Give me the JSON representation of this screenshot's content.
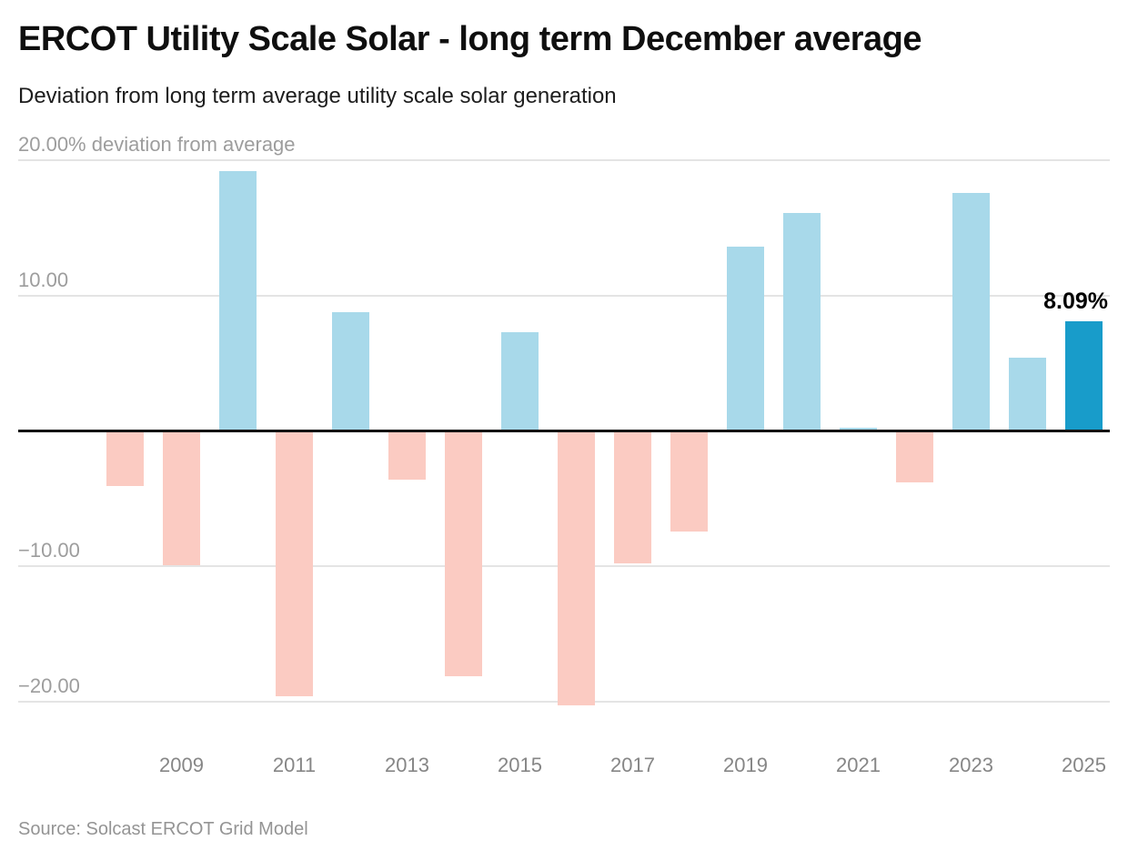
{
  "header": {
    "title": "ERCOT Utility Scale Solar - long term December average",
    "subtitle": "Deviation from long term average utility scale solar generation"
  },
  "chart_data": {
    "type": "bar",
    "title": "ERCOT Utility Scale Solar - long term December average",
    "subtitle": "Deviation from long term average utility scale solar generation",
    "ylabel": "% deviation from average",
    "categories": [
      2008,
      2009,
      2010,
      2011,
      2012,
      2013,
      2014,
      2015,
      2016,
      2017,
      2018,
      2019,
      2020,
      2021,
      2022,
      2023,
      2024,
      2025
    ],
    "values": [
      -4.1,
      -9.9,
      19.2,
      -19.6,
      8.8,
      -3.6,
      -18.1,
      7.3,
      -20.3,
      -9.8,
      -7.4,
      13.6,
      16.1,
      0.25,
      -3.8,
      17.6,
      5.4,
      8.09
    ],
    "highlight_year": 2025,
    "annotation": {
      "year": 2025,
      "text": "8.09%"
    },
    "y_ticks": [
      {
        "value": 20,
        "label": "20.00% deviation from average"
      },
      {
        "value": 10,
        "label": "10.00"
      },
      {
        "value": -10,
        "label": "−10.00"
      },
      {
        "value": -20,
        "label": "−20.00"
      }
    ],
    "x_tick_labels": [
      "2009",
      "2011",
      "2013",
      "2015",
      "2017",
      "2019",
      "2021",
      "2023",
      "2025"
    ],
    "ylim": [
      -21.5,
      20.5
    ],
    "grid": true,
    "legend": "none",
    "colors": {
      "positive": "#a8d9ea",
      "negative": "#fbcbc2",
      "highlight": "#189cca",
      "gridline": "#e4e4e4",
      "zero_line": "#131313"
    }
  },
  "footer": {
    "source": "Source: Solcast ERCOT Grid Model"
  }
}
